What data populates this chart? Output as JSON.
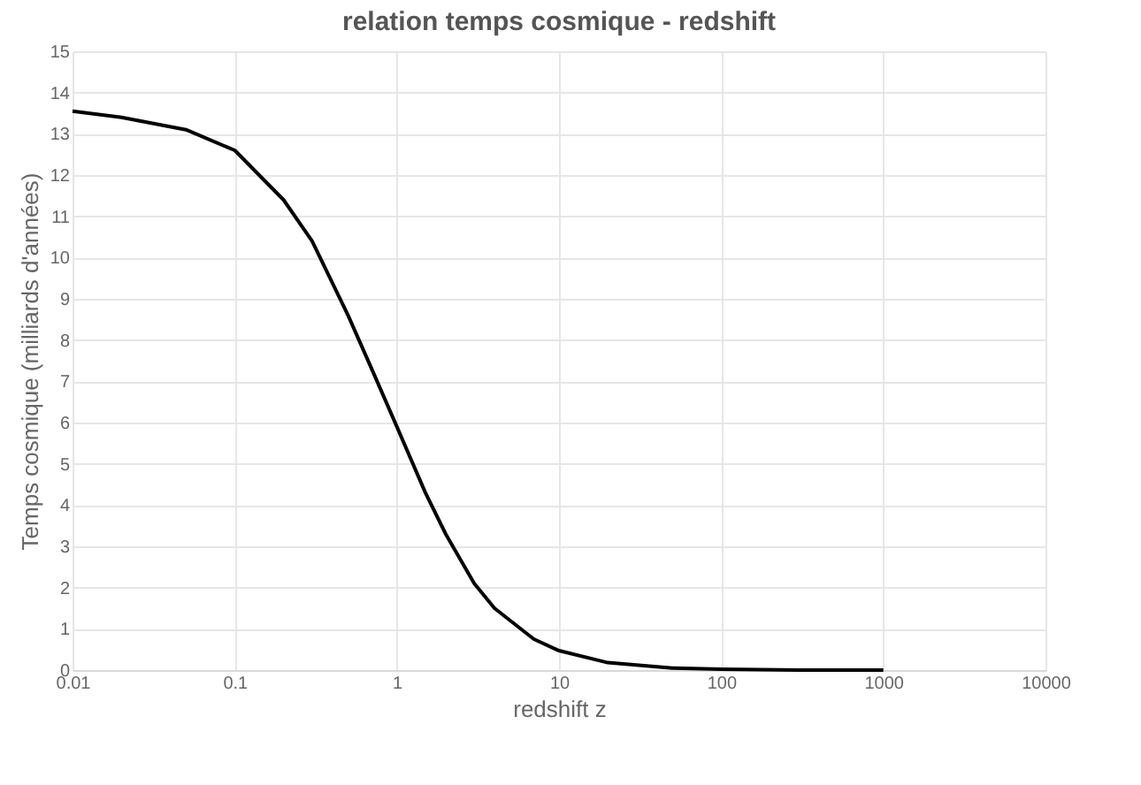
{
  "chart_data": {
    "type": "line",
    "title": "relation temps cosmique - redshift",
    "xlabel": "redshift z",
    "ylabel": "Temps cosmique (milliards d'années)",
    "x": [
      0.01,
      0.02,
      0.05,
      0.1,
      0.2,
      0.3,
      0.5,
      0.7,
      1,
      1.5,
      2,
      3,
      4,
      5,
      7,
      10,
      20,
      50,
      100,
      300,
      1000
    ],
    "series": [
      {
        "color": "#000000",
        "values": [
          13.55,
          13.4,
          13.1,
          12.6,
          11.4,
          10.4,
          8.6,
          7.3,
          5.9,
          4.3,
          3.3,
          2.1,
          1.5,
          1.2,
          0.75,
          0.47,
          0.18,
          0.05,
          0.02,
          0.0,
          0.0
        ]
      }
    ],
    "xlim": [
      0.01,
      10000
    ],
    "xticks": [
      0.01,
      0.1,
      1,
      10,
      100,
      1000,
      10000
    ],
    "ylim": [
      0,
      15
    ],
    "yticks": [
      0,
      1,
      2,
      3,
      4,
      5,
      6,
      7,
      8,
      9,
      10,
      11,
      12,
      13,
      14,
      15
    ],
    "log": "x",
    "grid": true,
    "marker": "none",
    "line_style": "solid",
    "legend": false
  }
}
